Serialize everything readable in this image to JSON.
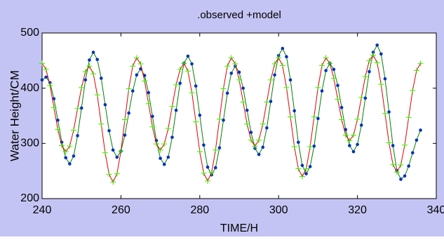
{
  "chart_data": {
    "type": "line",
    "title": ".observed +model",
    "x_label": "TIME/H",
    "y_label": "Water Height/CM",
    "xlim": [
      240,
      340
    ],
    "xticks": [
      240,
      260,
      280,
      300,
      320,
      340
    ],
    "ylim": [
      200,
      500
    ],
    "yticks": [
      200,
      300,
      400,
      500
    ],
    "grid": false,
    "background": "#c4c4f4",
    "x": [
      240,
      241,
      242,
      243,
      244,
      245,
      246,
      247,
      248,
      249,
      250,
      251,
      252,
      253,
      254,
      255,
      256,
      257,
      258,
      259,
      260,
      261,
      262,
      263,
      264,
      265,
      266,
      267,
      268,
      269,
      270,
      271,
      272,
      273,
      274,
      275,
      276,
      277,
      278,
      279,
      280,
      281,
      282,
      283,
      284,
      285,
      286,
      287,
      288,
      289,
      290,
      291,
      292,
      293,
      294,
      295,
      296,
      297,
      298,
      299,
      300,
      301,
      302,
      303,
      304,
      305,
      306,
      307,
      308,
      309,
      310,
      311,
      312,
      313,
      314,
      315,
      316,
      317,
      318,
      319,
      320,
      321,
      322,
      323,
      324,
      325,
      326,
      327,
      328,
      329,
      330,
      331,
      332,
      333,
      334,
      335,
      336
    ],
    "series": [
      {
        "line_color": "#008000",
        "marker": "dot",
        "marker_color": "#0030c0",
        "values": [
          415,
          420,
          410,
          381,
          342,
          302,
          274,
          263,
          277,
          314,
          364,
          415,
          451,
          465,
          452,
          418,
          370,
          323,
          288,
          275,
          286,
          315,
          355,
          395,
          424,
          435,
          423,
          392,
          349,
          305,
          273,
          262,
          275,
          311,
          360,
          409,
          445,
          458,
          444,
          404,
          351,
          297,
          257,
          243,
          256,
          292,
          342,
          391,
          427,
          440,
          429,
          400,
          360,
          320,
          291,
          280,
          293,
          328,
          376,
          424,
          459,
          472,
          457,
          415,
          359,
          302,
          260,
          245,
          258,
          295,
          345,
          395,
          432,
          445,
          434,
          405,
          365,
          325,
          296,
          285,
          298,
          333,
          382,
          430,
          465,
          478,
          462,
          417,
          357,
          296,
          251,
          235,
          241,
          259,
          283,
          306,
          324
        ]
      },
      {
        "line_color": "#e00000",
        "marker": "plus",
        "marker_color": "#40e000",
        "values": [
          445,
          434,
          405,
          365,
          325,
          296,
          285,
          295,
          324,
          363,
          401,
          430,
          440,
          426,
          388,
          335,
          283,
          244,
          230,
          245,
          286,
          343,
          399,
          440,
          455,
          444,
          413,
          372,
          330,
          299,
          288,
          299,
          327,
          367,
          406,
          434,
          445,
          431,
          392,
          339,
          285,
          246,
          232,
          247,
          288,
          344,
          399,
          440,
          455,
          444,
          415,
          375,
          335,
          306,
          295,
          306,
          335,
          375,
          415,
          444,
          455,
          441,
          401,
          348,
          294,
          254,
          240,
          254,
          294,
          348,
          401,
          441,
          455,
          445,
          418,
          380,
          343,
          315,
          305,
          315,
          344,
          383,
          421,
          450,
          460,
          446,
          407,
          354,
          301,
          262,
          248,
          261,
          297,
          347,
          396,
          432,
          445
        ]
      }
    ]
  }
}
